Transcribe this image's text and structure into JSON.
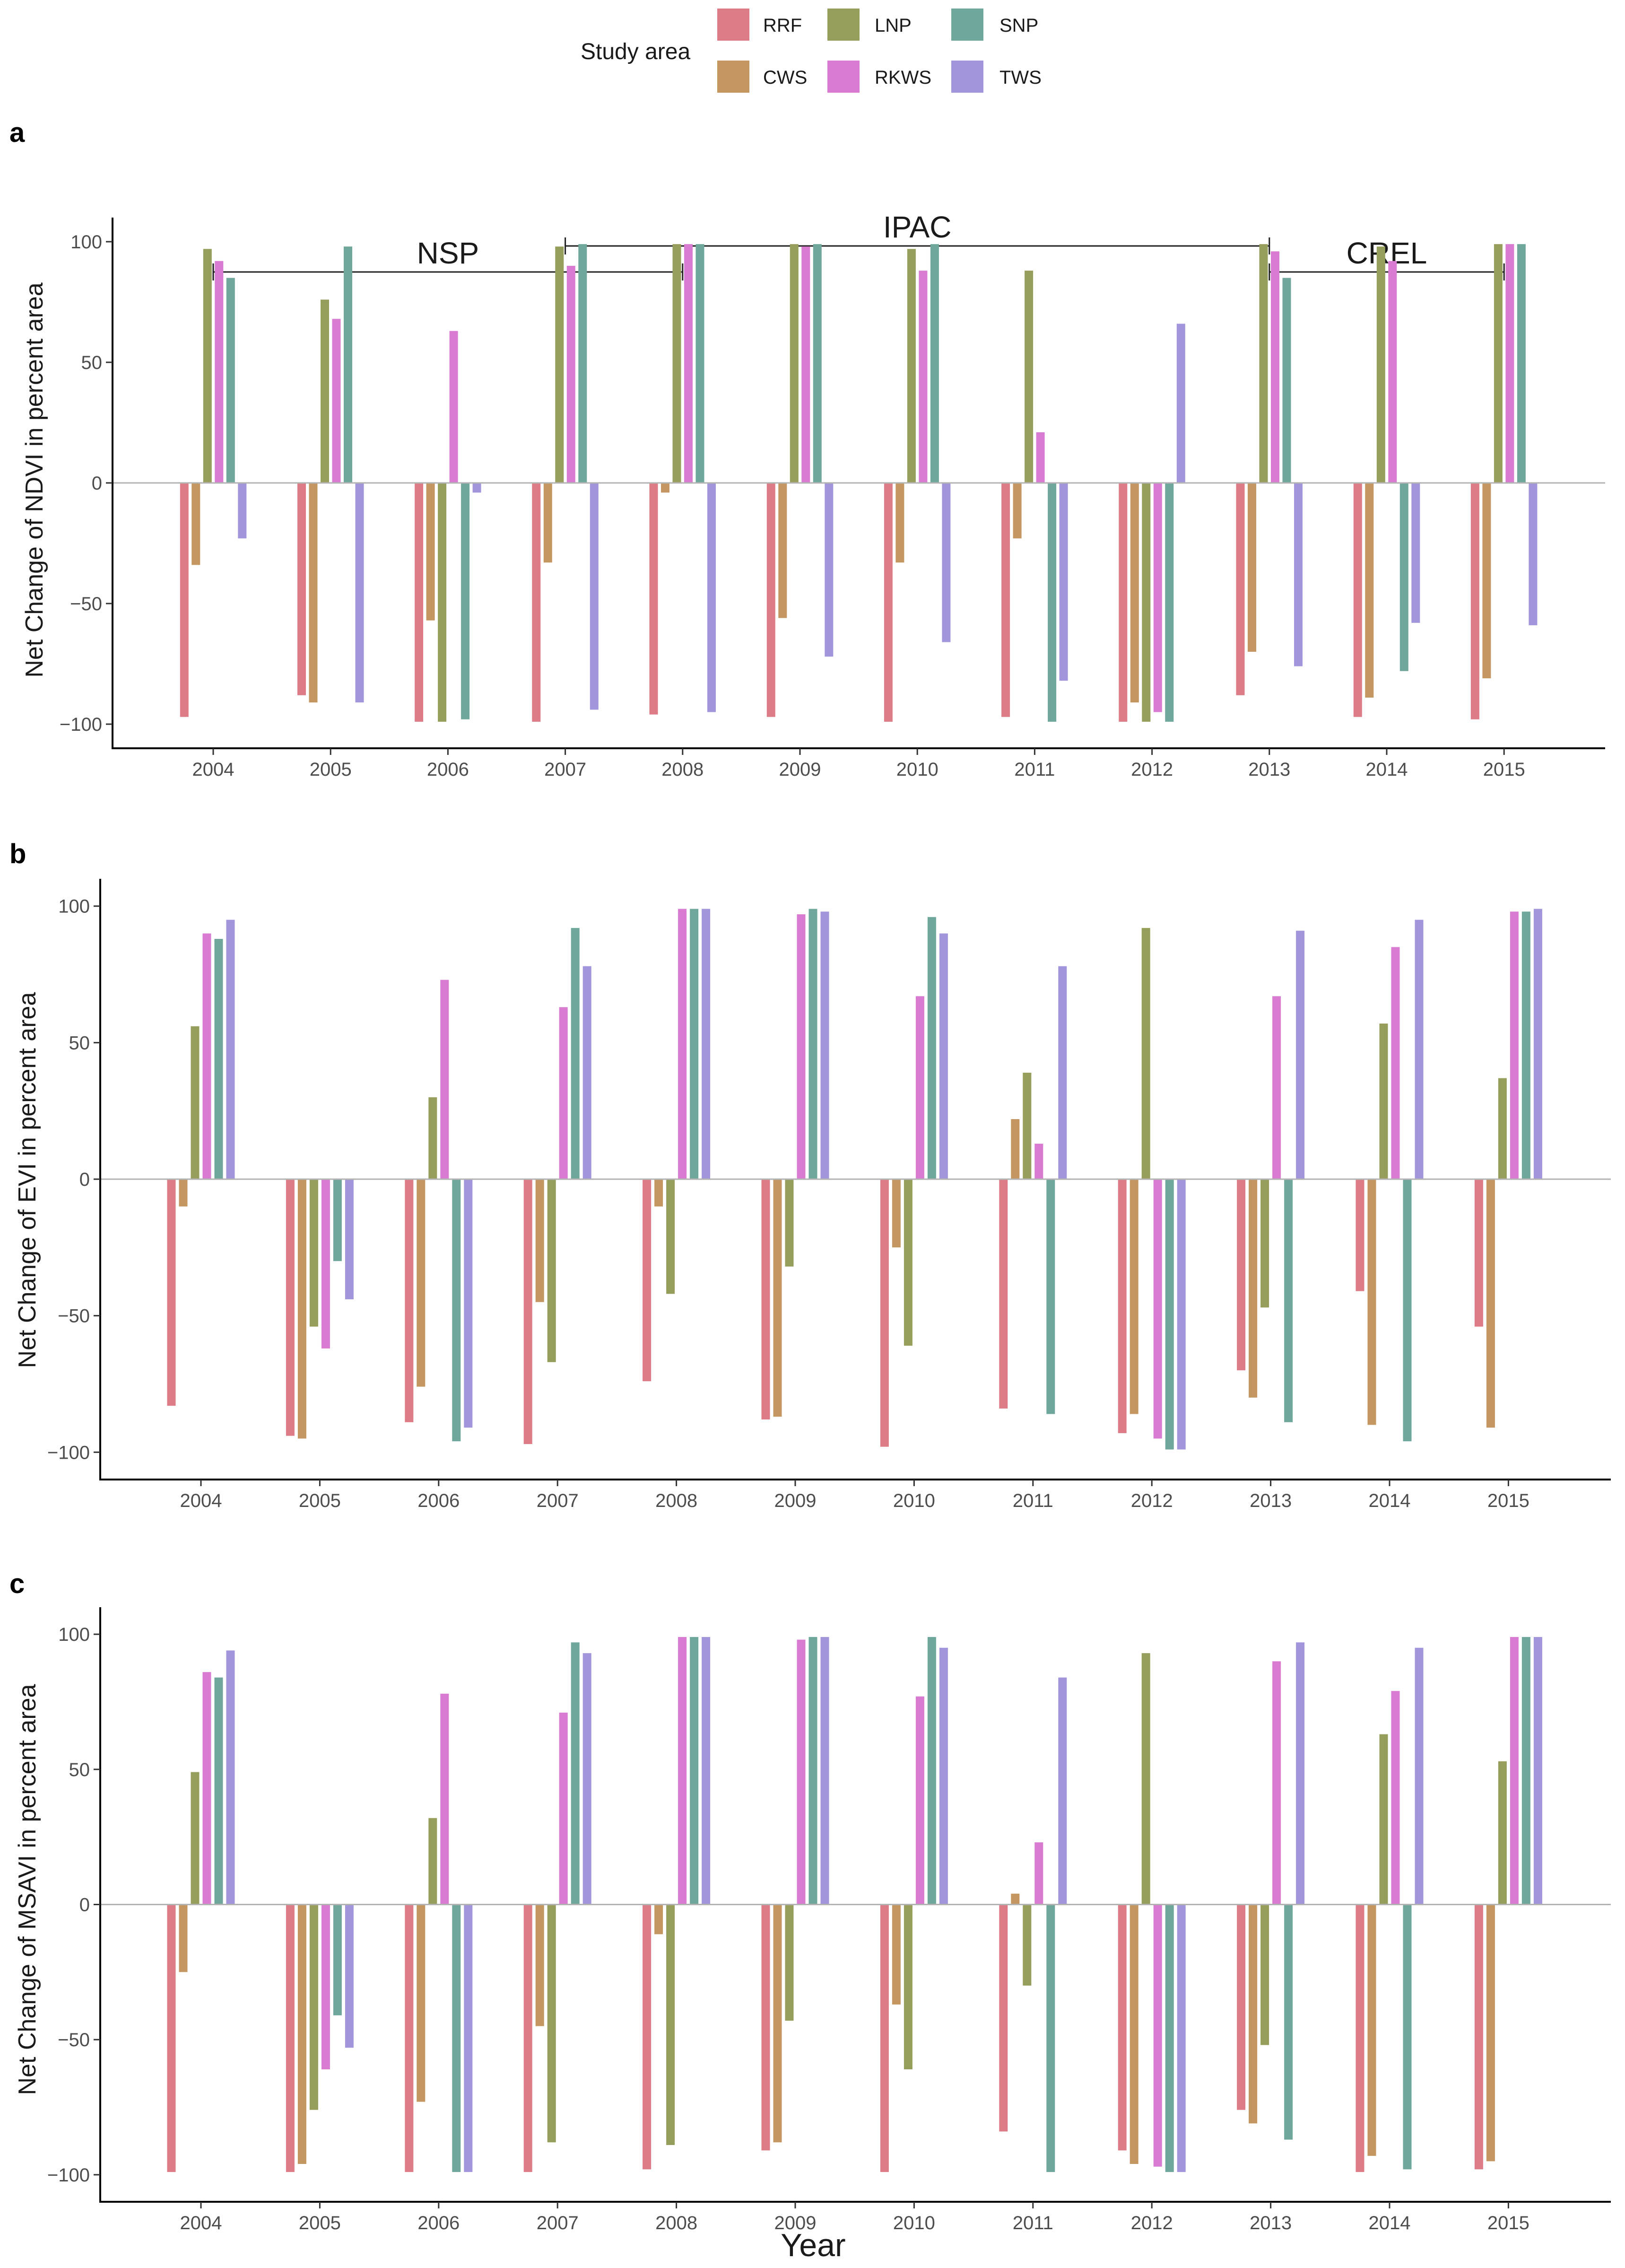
{
  "legend": {
    "title": "Study area",
    "entries": [
      {
        "name": "RRF",
        "color": "#DD7B86"
      },
      {
        "name": "CWS",
        "color": "#C49660"
      },
      {
        "name": "LNP",
        "color": "#979E5C"
      },
      {
        "name": "RKWS",
        "color": "#D87BD1"
      },
      {
        "name": "SNP",
        "color": "#6FA79C"
      },
      {
        "name": "TWS",
        "color": "#A295DB"
      }
    ]
  },
  "x_axis_title": "Year",
  "annotations": {
    "periods": [
      {
        "label": "NSP",
        "start": "2004",
        "end": "2008"
      },
      {
        "label": "IPAC",
        "start": "2007",
        "end": "2013"
      },
      {
        "label": "CREL",
        "start": "2013",
        "end": "2015"
      }
    ]
  },
  "chart_data": [
    {
      "type": "bar",
      "panel": "a",
      "title": "",
      "xlabel": "",
      "ylabel": "Net Change of NDVI in percent area",
      "ylim": [
        -110,
        110
      ],
      "yticks": [
        -100,
        -50,
        0,
        50,
        100
      ],
      "grid": false,
      "categories": [
        "2004",
        "2005",
        "2006",
        "2007",
        "2008",
        "2009",
        "2010",
        "2011",
        "2012",
        "2013",
        "2014",
        "2015"
      ],
      "series": [
        {
          "name": "RRF",
          "values": [
            -97,
            -88,
            -99,
            -99,
            -96,
            -97,
            -99,
            -97,
            -99,
            -88,
            -97,
            -98
          ]
        },
        {
          "name": "CWS",
          "values": [
            -34,
            -91,
            -57,
            -33,
            -4,
            -56,
            -33,
            -23,
            -91,
            -70,
            -89,
            -81
          ]
        },
        {
          "name": "LNP",
          "values": [
            97,
            76,
            -99,
            98,
            99,
            99,
            97,
            88,
            -99,
            99,
            98,
            99
          ]
        },
        {
          "name": "RKWS",
          "values": [
            92,
            68,
            63,
            90,
            99,
            98,
            88,
            21,
            -95,
            96,
            92,
            99
          ]
        },
        {
          "name": "SNP",
          "values": [
            85,
            98,
            -98,
            99,
            99,
            99,
            99,
            -99,
            -99,
            85,
            -78,
            99
          ]
        },
        {
          "name": "TWS",
          "values": [
            -23,
            -91,
            -4,
            -94,
            -95,
            -72,
            -66,
            -82,
            66,
            -76,
            -58,
            -59
          ]
        }
      ]
    },
    {
      "type": "bar",
      "panel": "b",
      "title": "",
      "xlabel": "",
      "ylabel": "Net Change of EVI in percent area",
      "ylim": [
        -110,
        110
      ],
      "yticks": [
        -100,
        -50,
        0,
        50,
        100
      ],
      "grid": false,
      "categories": [
        "2004",
        "2005",
        "2006",
        "2007",
        "2008",
        "2009",
        "2010",
        "2011",
        "2012",
        "2013",
        "2014",
        "2015"
      ],
      "series": [
        {
          "name": "RRF",
          "values": [
            -83,
            -94,
            -89,
            -97,
            -74,
            -88,
            -98,
            -84,
            -93,
            -70,
            -41,
            -54
          ]
        },
        {
          "name": "CWS",
          "values": [
            -10,
            -95,
            -76,
            -45,
            -10,
            -87,
            -25,
            22,
            -86,
            -80,
            -90,
            -91
          ]
        },
        {
          "name": "LNP",
          "values": [
            56,
            -54,
            30,
            -67,
            -42,
            -32,
            -61,
            39,
            92,
            -47,
            57,
            37
          ]
        },
        {
          "name": "RKWS",
          "values": [
            90,
            -62,
            73,
            63,
            99,
            97,
            67,
            13,
            -95,
            67,
            85,
            98
          ]
        },
        {
          "name": "SNP",
          "values": [
            88,
            -30,
            -96,
            92,
            99,
            99,
            96,
            -86,
            -99,
            -89,
            -96,
            98
          ]
        },
        {
          "name": "TWS",
          "values": [
            95,
            -44,
            -91,
            78,
            99,
            98,
            90,
            78,
            -99,
            91,
            95,
            99
          ]
        }
      ]
    },
    {
      "type": "bar",
      "panel": "c",
      "title": "",
      "xlabel": "Year",
      "ylabel": "Net Change of MSAVI in percent area",
      "ylim": [
        -110,
        110
      ],
      "yticks": [
        -100,
        -50,
        0,
        50,
        100
      ],
      "grid": false,
      "categories": [
        "2004",
        "2005",
        "2006",
        "2007",
        "2008",
        "2009",
        "2010",
        "2011",
        "2012",
        "2013",
        "2014",
        "2015"
      ],
      "series": [
        {
          "name": "RRF",
          "values": [
            -99,
            -99,
            -99,
            -99,
            -98,
            -91,
            -99,
            -84,
            -91,
            -76,
            -99,
            -98
          ]
        },
        {
          "name": "CWS",
          "values": [
            -25,
            -96,
            -73,
            -45,
            -11,
            -88,
            -37,
            4,
            -96,
            -81,
            -93,
            -95
          ]
        },
        {
          "name": "LNP",
          "values": [
            49,
            -76,
            32,
            -88,
            -89,
            -43,
            -61,
            -30,
            93,
            -52,
            63,
            53
          ]
        },
        {
          "name": "RKWS",
          "values": [
            86,
            -61,
            78,
            71,
            99,
            98,
            77,
            23,
            -97,
            90,
            79,
            99
          ]
        },
        {
          "name": "SNP",
          "values": [
            84,
            -41,
            -99,
            97,
            99,
            99,
            99,
            -99,
            -99,
            -87,
            -98,
            99
          ]
        },
        {
          "name": "TWS",
          "values": [
            94,
            -53,
            -99,
            93,
            99,
            99,
            95,
            84,
            -99,
            97,
            95,
            99
          ]
        }
      ]
    }
  ]
}
